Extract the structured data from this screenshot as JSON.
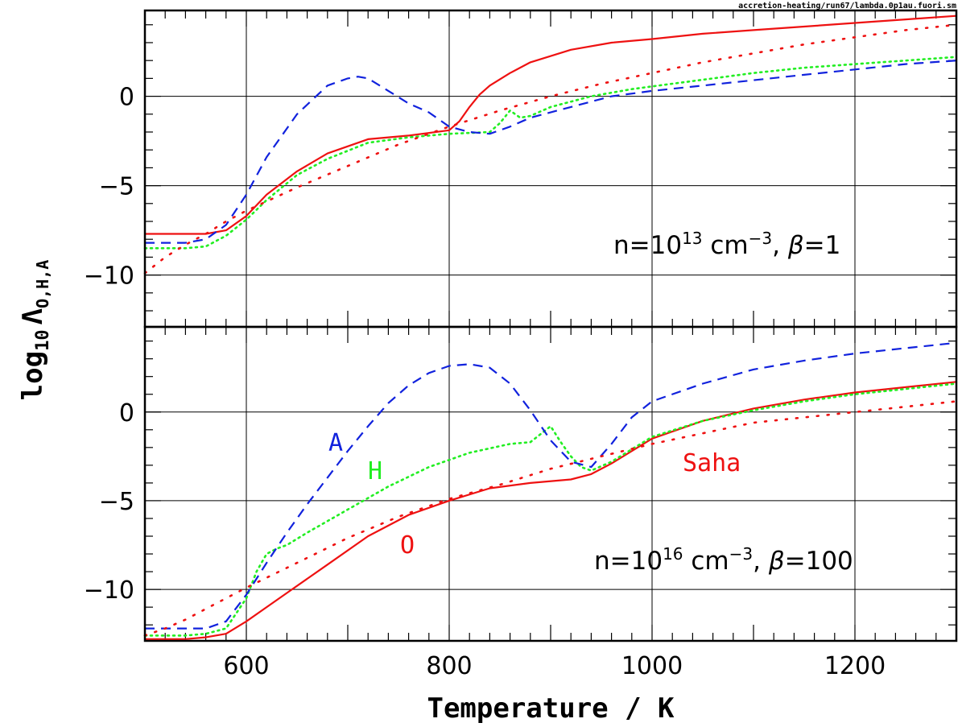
{
  "source_label": "accretion-heating/run67/lambda.0p1au.fuori.sm",
  "colors": {
    "O": "#ee1111",
    "H": "#22ee22",
    "A": "#1122dd",
    "Saha": "#ee1111",
    "axis": "#000000"
  },
  "chart_data": [
    {
      "panel": "top",
      "type": "line",
      "xlim": [
        500,
        1300
      ],
      "ylim": [
        -12.9,
        4.8
      ],
      "xticks": [
        600,
        800,
        1000,
        1200
      ],
      "yticks": [
        0,
        -5,
        -10
      ],
      "ytick_labels": [
        "0",
        "−5",
        "−10"
      ],
      "grid": true,
      "annotation": {
        "prefix": "n=10",
        "exp": "13",
        "mid": " cm",
        "exp2": "−3",
        "sep": ",  ",
        "beta_sym": "β",
        "beta_val": "=1"
      },
      "series": [
        {
          "name": "O",
          "style": "solid",
          "color": "#ee1111",
          "x": [
            500,
            540,
            560,
            580,
            600,
            620,
            650,
            680,
            720,
            760,
            800,
            810,
            820,
            830,
            840,
            860,
            880,
            920,
            960,
            1000,
            1050,
            1100,
            1150,
            1200,
            1250,
            1300
          ],
          "y": [
            -7.7,
            -7.7,
            -7.7,
            -7.5,
            -6.7,
            -5.5,
            -4.2,
            -3.2,
            -2.4,
            -2.2,
            -1.9,
            -1.4,
            -0.6,
            0.1,
            0.6,
            1.3,
            1.9,
            2.6,
            3.0,
            3.2,
            3.5,
            3.7,
            3.9,
            4.1,
            4.3,
            4.5
          ]
        },
        {
          "name": "H",
          "style": "dotted",
          "color": "#22ee22",
          "x": [
            500,
            540,
            560,
            580,
            600,
            620,
            650,
            680,
            720,
            760,
            800,
            840,
            850,
            860,
            870,
            880,
            900,
            940,
            980,
            1020,
            1060,
            1100,
            1150,
            1200,
            1250,
            1300
          ],
          "y": [
            -8.5,
            -8.5,
            -8.4,
            -7.8,
            -6.9,
            -5.8,
            -4.4,
            -3.5,
            -2.6,
            -2.3,
            -2.1,
            -2.0,
            -1.5,
            -0.8,
            -1.2,
            -1.1,
            -0.6,
            0.0,
            0.4,
            0.7,
            1.0,
            1.3,
            1.6,
            1.8,
            2.0,
            2.2
          ]
        },
        {
          "name": "A",
          "style": "dashed",
          "color": "#1122dd",
          "x": [
            500,
            540,
            560,
            580,
            600,
            620,
            650,
            680,
            700,
            710,
            720,
            740,
            760,
            780,
            800,
            820,
            840,
            860,
            880,
            920,
            960,
            1000,
            1050,
            1100,
            1150,
            1200,
            1250,
            1300
          ],
          "y": [
            -8.2,
            -8.2,
            -8.0,
            -7.2,
            -5.5,
            -3.4,
            -1.0,
            0.6,
            1.0,
            1.1,
            1.0,
            0.3,
            -0.4,
            -0.9,
            -1.7,
            -2.0,
            -2.1,
            -1.7,
            -1.2,
            -0.6,
            0.0,
            0.3,
            0.6,
            0.9,
            1.2,
            1.5,
            1.8,
            2.0
          ]
        },
        {
          "name": "Saha",
          "style": "dotted",
          "color": "#ee1111",
          "x": [
            500,
            520,
            540,
            560,
            580,
            600,
            650,
            700,
            750,
            800,
            850,
            900,
            950,
            1000,
            1050,
            1100,
            1150,
            1200,
            1250,
            1300
          ],
          "y": [
            -9.9,
            -9.0,
            -8.3,
            -7.7,
            -7.0,
            -6.4,
            -5.1,
            -3.9,
            -2.7,
            -1.7,
            -0.8,
            0.0,
            0.7,
            1.3,
            1.9,
            2.4,
            2.9,
            3.3,
            3.7,
            4.0
          ]
        }
      ]
    },
    {
      "panel": "bottom",
      "type": "line",
      "xlim": [
        500,
        1300
      ],
      "ylim": [
        -12.9,
        4.8
      ],
      "xticks": [
        600,
        800,
        1000,
        1200
      ],
      "xtick_labels": [
        "600",
        "800",
        "1000",
        "1200"
      ],
      "yticks": [
        0,
        -5,
        -10
      ],
      "ytick_labels": [
        "0",
        "−5",
        "−10"
      ],
      "grid": true,
      "xlabel": "Temperature / K",
      "ylabel_main": "log",
      "ylabel_sub": "10",
      "ylabel_sym": "Λ",
      "ylabel_sub2": "O,H,A",
      "annotation": {
        "prefix": "n=10",
        "exp": "16",
        "mid": " cm",
        "exp2": "−3",
        "sep": ",  ",
        "beta_sym": "β",
        "beta_val": "=100"
      },
      "curve_labels": {
        "A": "A",
        "H": "H",
        "O": "O",
        "Saha": "Saha"
      },
      "series": [
        {
          "name": "O",
          "style": "solid",
          "color": "#ee1111",
          "x": [
            500,
            540,
            560,
            580,
            600,
            640,
            680,
            720,
            760,
            800,
            840,
            880,
            920,
            940,
            960,
            1000,
            1050,
            1100,
            1150,
            1200,
            1250,
            1300
          ],
          "y": [
            -12.8,
            -12.8,
            -12.7,
            -12.5,
            -11.8,
            -10.2,
            -8.6,
            -7.0,
            -5.8,
            -5.0,
            -4.3,
            -4.0,
            -3.8,
            -3.5,
            -2.9,
            -1.5,
            -0.5,
            0.2,
            0.7,
            1.1,
            1.4,
            1.7
          ]
        },
        {
          "name": "H",
          "style": "dotted",
          "color": "#22ee22",
          "x": [
            500,
            540,
            560,
            580,
            600,
            610,
            620,
            630,
            640,
            660,
            700,
            740,
            780,
            820,
            860,
            880,
            900,
            910,
            920,
            930,
            940,
            960,
            1000,
            1050,
            1100,
            1150,
            1200,
            1250,
            1300
          ],
          "y": [
            -12.6,
            -12.6,
            -12.5,
            -12.2,
            -10.5,
            -9.0,
            -8.0,
            -7.7,
            -7.5,
            -6.8,
            -5.5,
            -4.2,
            -3.1,
            -2.3,
            -1.8,
            -1.7,
            -0.8,
            -1.7,
            -2.5,
            -3.1,
            -3.3,
            -2.8,
            -1.4,
            -0.5,
            0.1,
            0.6,
            1.0,
            1.3,
            1.6
          ]
        },
        {
          "name": "A",
          "style": "dashed",
          "color": "#1122dd",
          "x": [
            500,
            540,
            560,
            580,
            600,
            620,
            640,
            660,
            680,
            700,
            720,
            740,
            760,
            780,
            800,
            820,
            840,
            860,
            880,
            900,
            920,
            940,
            960,
            980,
            1000,
            1050,
            1100,
            1150,
            1200,
            1250,
            1300
          ],
          "y": [
            -12.2,
            -12.2,
            -12.2,
            -11.8,
            -10.3,
            -8.5,
            -6.8,
            -5.2,
            -3.7,
            -2.2,
            -0.8,
            0.5,
            1.5,
            2.2,
            2.6,
            2.7,
            2.5,
            1.6,
            0.1,
            -1.6,
            -2.8,
            -3.1,
            -1.8,
            -0.3,
            0.6,
            1.6,
            2.4,
            2.9,
            3.3,
            3.6,
            3.9
          ]
        },
        {
          "name": "Saha",
          "style": "dotted",
          "color": "#ee1111",
          "x": [
            500,
            520,
            540,
            560,
            580,
            600,
            650,
            700,
            750,
            800,
            850,
            900,
            950,
            1000,
            1050,
            1100,
            1150,
            1200,
            1250,
            1300
          ],
          "y": [
            -12.6,
            -12.2,
            -11.7,
            -11.1,
            -10.5,
            -9.9,
            -8.5,
            -7.1,
            -5.9,
            -4.9,
            -4.1,
            -3.2,
            -2.5,
            -1.8,
            -1.2,
            -0.6,
            -0.3,
            0.0,
            0.3,
            0.6
          ]
        }
      ]
    }
  ]
}
